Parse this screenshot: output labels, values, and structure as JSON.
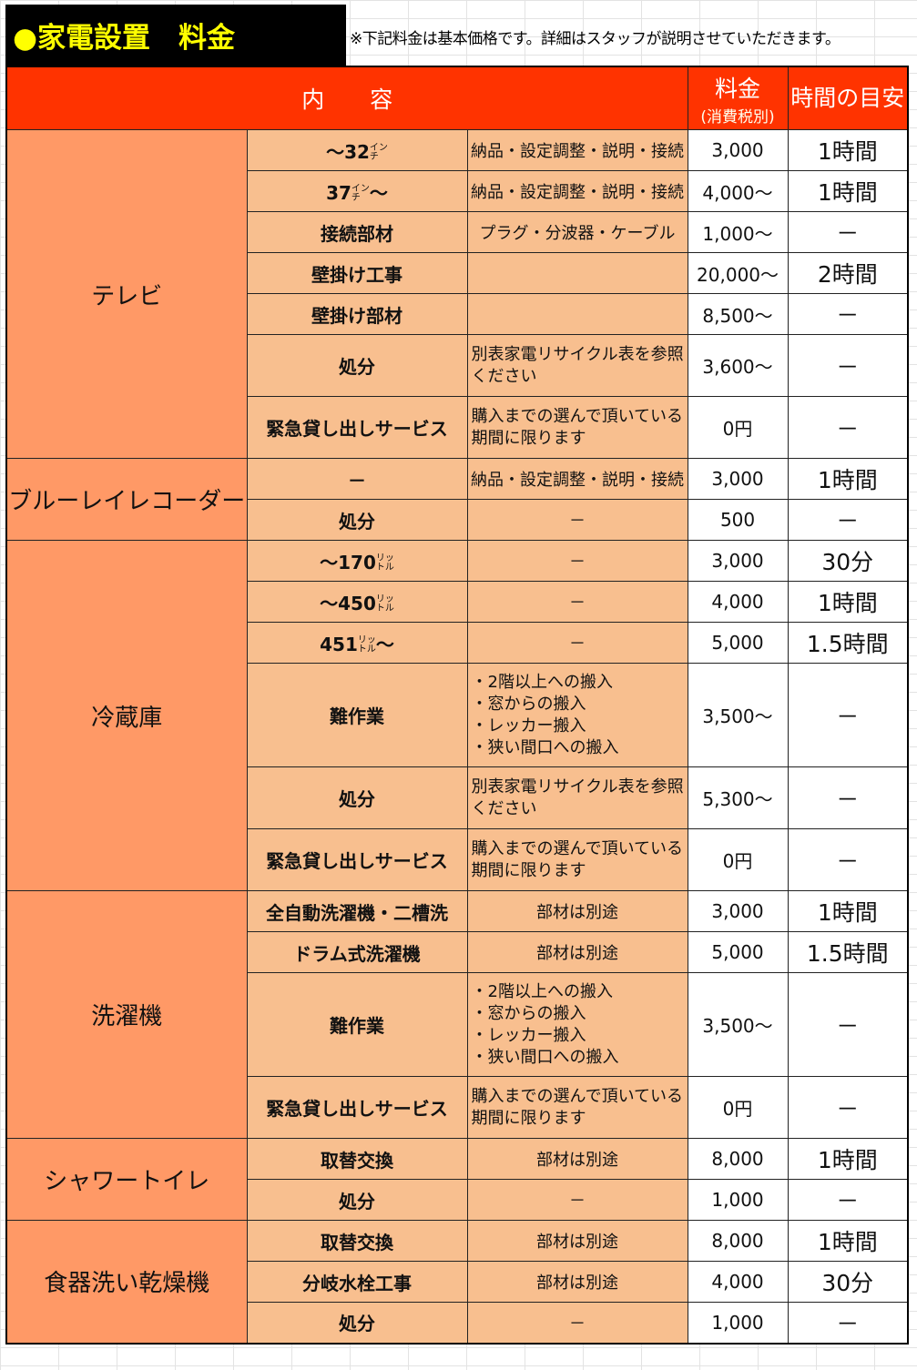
{
  "title": "●家電設置　料金",
  "note": "※下記料金は基本価格です。詳細はスタッフが説明させていただきます。",
  "header": {
    "content": "内　　容",
    "price": "料金",
    "price_note": "(消費税別)",
    "time": "時間の目安"
  },
  "colors": {
    "header": "#ff3300",
    "category": "#ff9966",
    "item": "#f8bf8f",
    "title_bg": "#000000",
    "title_text": "#ffff00"
  },
  "categories": [
    {
      "name": "テレビ",
      "rows": [
        {
          "pre": "～32",
          "unit": "インチ",
          "post": "",
          "desc": "納品・設定調整・説明・接続",
          "price": "3,000",
          "time": "1時間"
        },
        {
          "pre": "37",
          "unit": "インチ",
          "post": "～",
          "desc": "納品・設定調整・説明・接続",
          "price": "4,000～",
          "time": "1時間"
        },
        {
          "pre": "接続部材",
          "desc": "プラグ・分波器・ケーブル",
          "price": "1,000～",
          "time": "－"
        },
        {
          "pre": "壁掛け工事",
          "desc": "",
          "price": "20,000～",
          "time": "2時間"
        },
        {
          "pre": "壁掛け部材",
          "desc": "",
          "price": "8,500～",
          "time": "－"
        },
        {
          "pre": "処分",
          "desc": "別表家電リサイクル表を参照ください",
          "price": "3,600～",
          "time": "－",
          "tall": true
        },
        {
          "pre": "緊急貸し出しサービス",
          "desc": "購入までの選んで頂いている期間に限ります",
          "price": "0円",
          "time": "－",
          "tall": true
        }
      ]
    },
    {
      "name": "ブルーレイレコーダー",
      "rows": [
        {
          "pre": "－",
          "desc": "納品・設定調整・説明・接続",
          "price": "3,000",
          "time": "1時間"
        },
        {
          "pre": "処分",
          "desc": "－",
          "price": "500",
          "time": "－"
        }
      ]
    },
    {
      "name": "冷蔵庫",
      "rows": [
        {
          "pre": "～170",
          "unit": "リットル",
          "post": "",
          "desc": "－",
          "price": "3,000",
          "time": "30分"
        },
        {
          "pre": "～450",
          "unit": "リットル",
          "post": "",
          "desc": "－",
          "price": "4,000",
          "time": "1時間"
        },
        {
          "pre": "451",
          "unit": "リットル",
          "post": "～",
          "desc": "－",
          "price": "5,000",
          "time": "1.5時間"
        },
        {
          "pre": "難作業",
          "desc": "・2階以上への搬入\n・窓からの搬入\n・レッカー搬入\n・狭い間口への搬入",
          "price": "3,500～",
          "time": "－",
          "xtall": true
        },
        {
          "pre": "処分",
          "desc": "別表家電リサイクル表を参照ください",
          "price": "5,300～",
          "time": "－",
          "tall": true
        },
        {
          "pre": "緊急貸し出しサービス",
          "desc": "購入までの選んで頂いている期間に限ります",
          "price": "0円",
          "time": "－",
          "tall": true
        }
      ]
    },
    {
      "name": "洗濯機",
      "rows": [
        {
          "pre": "全自動洗濯機・二槽洗",
          "desc": "部材は別途",
          "price": "3,000",
          "time": "1時間"
        },
        {
          "pre": "ドラム式洗濯機",
          "desc": "部材は別途",
          "price": "5,000",
          "time": "1.5時間"
        },
        {
          "pre": "難作業",
          "desc": "・2階以上への搬入\n・窓からの搬入\n・レッカー搬入\n・狭い間口への搬入",
          "price": "3,500～",
          "time": "－",
          "xtall": true
        },
        {
          "pre": "緊急貸し出しサービス",
          "desc": "購入までの選んで頂いている期間に限ります",
          "price": "0円",
          "time": "－",
          "tall": true
        }
      ]
    },
    {
      "name": "シャワートイレ",
      "rows": [
        {
          "pre": "取替交換",
          "desc": "部材は別途",
          "price": "8,000",
          "time": "1時間"
        },
        {
          "pre": "処分",
          "desc": "－",
          "price": "1,000",
          "time": "－"
        }
      ]
    },
    {
      "name": "食器洗い乾燥機",
      "rows": [
        {
          "pre": "取替交換",
          "desc": "部材は別途",
          "price": "8,000",
          "time": "1時間"
        },
        {
          "pre": "分岐水栓工事",
          "desc": "部材は別途",
          "price": "4,000",
          "time": "30分"
        },
        {
          "pre": "処分",
          "desc": "－",
          "price": "1,000",
          "time": "－"
        }
      ]
    }
  ]
}
